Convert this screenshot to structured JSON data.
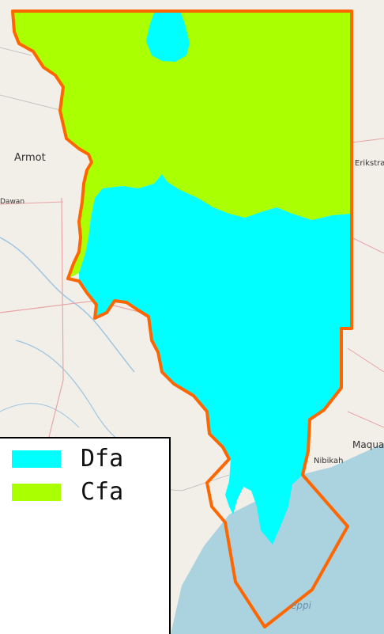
{
  "basemap": {
    "places": [
      {
        "name": "Armot"
      },
      {
        "name": "Erikstrand"
      },
      {
        "name": "Maqua"
      },
      {
        "name": "Nibikah"
      },
      {
        "name": "Dawan"
      }
    ],
    "water_label": "eppi",
    "colors": {
      "land": "#f2efe9",
      "water": "#aad3df",
      "road": "#e8a5a5",
      "river": "#9ec5e0"
    }
  },
  "regions": [
    {
      "code": "Dfa",
      "color": "#00ffff"
    },
    {
      "code": "Cfa",
      "color": "#aaff00"
    }
  ],
  "boundary_color": "#ff6600",
  "legend": {
    "items": [
      {
        "label": "Dfa",
        "color": "#00ffff"
      },
      {
        "label": "Cfa",
        "color": "#aaff00"
      }
    ]
  }
}
